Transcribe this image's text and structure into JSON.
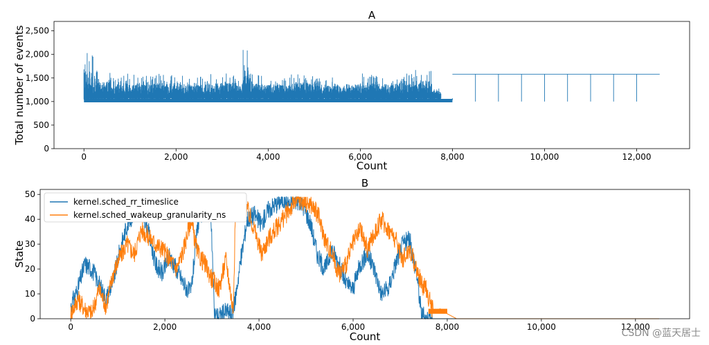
{
  "chart_data": [
    {
      "type": "line",
      "title": "A",
      "xlabel": "Count",
      "ylabel": "Total number of events",
      "xlim": [
        -650,
        13150
      ],
      "ylim": [
        0,
        2700
      ],
      "x_ticks": [
        0,
        2000,
        4000,
        6000,
        8000,
        10000,
        12000
      ],
      "x_tick_labels": [
        "0",
        "2,000",
        "4,000",
        "6,000",
        "8,000",
        "10,000",
        "12,000"
      ],
      "y_ticks": [
        0,
        500,
        1000,
        1500,
        2000,
        2500
      ],
      "y_tick_labels": [
        "0",
        "500",
        "1,000",
        "1,500",
        "2,000",
        "2,500"
      ],
      "grid": false,
      "series": [
        {
          "color": "#1f77b4",
          "x": [
            0,
            300,
            600,
            900,
            1200,
            1500,
            1800,
            2100,
            2400,
            2700,
            3000,
            3300,
            3450,
            3600,
            3900,
            4200,
            4500,
            4800,
            5100,
            5400,
            5700,
            6000,
            6300,
            6600,
            6900,
            7200,
            7500,
            7550,
            7700,
            7750,
            8000,
            8000,
            8500,
            8500,
            9000,
            9000,
            9500,
            9500,
            10000,
            10000,
            10500,
            10500,
            11000,
            11000,
            11500,
            11500,
            12000,
            12000,
            12500
          ],
          "y_low": [
            1000,
            1000,
            1000,
            1000,
            1000,
            1000,
            1000,
            1000,
            1000,
            1000,
            1000,
            1000,
            1000,
            1000,
            1000,
            1000,
            1000,
            1000,
            1000,
            1000,
            1000,
            1000,
            1000,
            1000,
            1000,
            1000,
            1000,
            1000,
            1000,
            1030,
            1030,
            1580,
            1000,
            1580,
            1000,
            1580,
            1000,
            1580,
            1000,
            1580,
            1000,
            1580,
            1000,
            1580,
            1000,
            1580,
            1000,
            1580,
            1580
          ],
          "y_high": [
            2100,
            1650,
            1550,
            1600,
            1550,
            1600,
            1600,
            1550,
            1550,
            1600,
            1600,
            1500,
            2130,
            1600,
            1550,
            1550,
            1600,
            1600,
            1550,
            1500,
            1550,
            1600,
            1550,
            1600,
            1600,
            1700,
            1700,
            1280,
            1280,
            1070,
            1070,
            1580,
            1580,
            1580,
            1580,
            1580,
            1580,
            1580,
            1580,
            1580,
            1580,
            1580,
            1580,
            1580,
            1580,
            1580,
            1580,
            1580,
            1580
          ]
        }
      ]
    },
    {
      "type": "line",
      "title": "B",
      "xlabel": "Count",
      "ylabel": "State",
      "xlim": [
        -650,
        13150
      ],
      "ylim": [
        0,
        52
      ],
      "x_ticks": [
        0,
        2000,
        4000,
        6000,
        8000,
        10000,
        12000
      ],
      "x_tick_labels": [
        "0",
        "2,000",
        "4,000",
        "6,000",
        "8,000",
        "10,000",
        "12,000"
      ],
      "y_ticks": [
        0,
        10,
        20,
        30,
        40,
        50
      ],
      "y_tick_labels": [
        "0",
        "10",
        "20",
        "30",
        "40",
        "50"
      ],
      "grid": false,
      "legend": "top-left",
      "series": [
        {
          "name": "kernel.sched_rr_timeslice",
          "color": "#1f77b4",
          "x": [
            0,
            150,
            300,
            450,
            600,
            750,
            900,
            1050,
            1200,
            1350,
            1500,
            1650,
            1800,
            1950,
            2100,
            2250,
            2400,
            2550,
            2700,
            2850,
            2950,
            3000,
            3050,
            3150,
            3300,
            3450,
            3600,
            3750,
            3900,
            4050,
            4200,
            4350,
            4500,
            4650,
            4800,
            4950,
            5100,
            5250,
            5400,
            5550,
            5700,
            5850,
            6000,
            6150,
            6300,
            6450,
            6600,
            6750,
            6900,
            7050,
            7200,
            7350,
            7450,
            7550,
            7700,
            8000,
            9000,
            10000,
            11000,
            12000,
            12500
          ],
          "y": [
            5,
            12,
            22,
            20,
            14,
            8,
            15,
            28,
            38,
            43,
            45,
            35,
            22,
            18,
            25,
            20,
            14,
            10,
            38,
            46,
            48,
            30,
            2,
            1,
            3,
            2,
            22,
            40,
            42,
            38,
            44,
            46,
            48,
            46,
            48,
            45,
            38,
            25,
            20,
            28,
            22,
            14,
            12,
            22,
            26,
            20,
            10,
            12,
            22,
            30,
            32,
            18,
            2,
            0,
            0,
            0,
            0,
            0,
            0,
            0,
            0
          ]
        },
        {
          "name": "kernel.sched_wakeup_granularity_ns",
          "color": "#ff7f0e",
          "x": [
            0,
            150,
            300,
            450,
            600,
            750,
            900,
            1050,
            1200,
            1350,
            1500,
            1650,
            1800,
            1950,
            2100,
            2250,
            2400,
            2550,
            2700,
            2850,
            3000,
            3150,
            3300,
            3450,
            3500,
            3600,
            3750,
            3900,
            4050,
            4200,
            4350,
            4500,
            4650,
            4800,
            4950,
            5100,
            5250,
            5400,
            5550,
            5700,
            5850,
            6000,
            6150,
            6300,
            6450,
            6600,
            6750,
            6900,
            7050,
            7200,
            7350,
            7450,
            7550,
            7700,
            7850,
            8000,
            8200,
            9000,
            10000,
            11000,
            12000,
            12500
          ],
          "y": [
            2,
            8,
            4,
            2,
            12,
            5,
            18,
            25,
            30,
            26,
            36,
            33,
            30,
            28,
            24,
            20,
            28,
            40,
            26,
            22,
            16,
            12,
            24,
            3,
            42,
            48,
            44,
            36,
            26,
            32,
            36,
            40,
            44,
            48,
            47,
            46,
            42,
            32,
            26,
            18,
            22,
            30,
            36,
            28,
            34,
            40,
            36,
            32,
            24,
            28,
            20,
            14,
            12,
            3,
            4,
            2,
            0,
            0,
            0,
            0,
            0,
            0
          ]
        }
      ]
    }
  ],
  "watermark": "CSDN @蓝天居士"
}
